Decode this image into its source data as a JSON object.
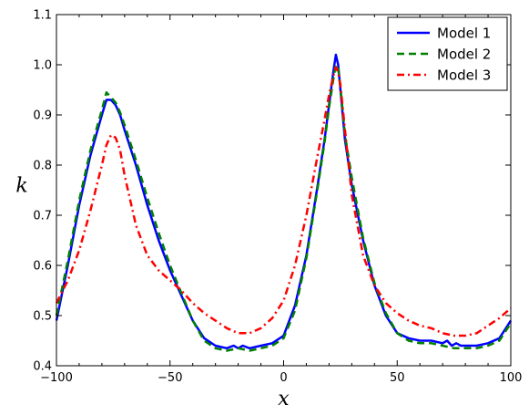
{
  "chart_data": {
    "type": "line",
    "title": "",
    "xlabel": "x",
    "ylabel": "k",
    "xlim": [
      -100,
      100
    ],
    "ylim": [
      0.4,
      1.1
    ],
    "xticks": [
      "−100",
      "−50",
      "0",
      "50",
      "100"
    ],
    "yticks": [
      "0.4",
      "0.5",
      "0.6",
      "0.7",
      "0.8",
      "0.9",
      "1.0",
      "1.1"
    ],
    "grid": false,
    "legend_position": "top-right",
    "series": [
      {
        "name": "Model 1",
        "color": "#0000ff",
        "style": "solid",
        "x": [
          -100,
          -95,
          -90,
          -85,
          -80,
          -78,
          -76,
          -74,
          -72,
          -70,
          -65,
          -60,
          -55,
          -50,
          -45,
          -40,
          -35,
          -30,
          -25,
          -22,
          -20,
          -18,
          -15,
          -10,
          -5,
          0,
          5,
          10,
          15,
          18,
          20,
          22,
          23,
          24,
          25,
          27,
          30,
          35,
          40,
          45,
          50,
          55,
          60,
          65,
          70,
          72,
          74,
          76,
          78,
          80,
          85,
          90,
          95,
          100
        ],
        "y": [
          0.49,
          0.6,
          0.72,
          0.82,
          0.9,
          0.93,
          0.93,
          0.92,
          0.9,
          0.87,
          0.8,
          0.72,
          0.65,
          0.59,
          0.54,
          0.49,
          0.455,
          0.44,
          0.435,
          0.44,
          0.435,
          0.44,
          0.435,
          0.44,
          0.445,
          0.46,
          0.52,
          0.62,
          0.76,
          0.85,
          0.92,
          0.99,
          1.02,
          1.0,
          0.95,
          0.85,
          0.76,
          0.65,
          0.56,
          0.5,
          0.465,
          0.455,
          0.45,
          0.45,
          0.445,
          0.45,
          0.44,
          0.445,
          0.44,
          0.44,
          0.44,
          0.445,
          0.455,
          0.49
        ]
      },
      {
        "name": "Model 2",
        "color": "#008000",
        "style": "dashed",
        "x": [
          -100,
          -95,
          -90,
          -85,
          -80,
          -78,
          -76,
          -74,
          -72,
          -70,
          -65,
          -60,
          -55,
          -50,
          -45,
          -40,
          -35,
          -30,
          -25,
          -20,
          -15,
          -10,
          -5,
          0,
          5,
          10,
          15,
          18,
          20,
          22,
          23,
          24,
          25,
          27,
          30,
          35,
          40,
          45,
          50,
          55,
          60,
          65,
          70,
          75,
          80,
          85,
          90,
          95,
          100
        ],
        "y": [
          0.5,
          0.61,
          0.73,
          0.83,
          0.91,
          0.945,
          0.935,
          0.925,
          0.905,
          0.88,
          0.81,
          0.735,
          0.665,
          0.6,
          0.545,
          0.49,
          0.45,
          0.435,
          0.43,
          0.435,
          0.43,
          0.435,
          0.44,
          0.455,
          0.51,
          0.615,
          0.755,
          0.845,
          0.915,
          0.975,
          1.0,
          0.995,
          0.955,
          0.86,
          0.775,
          0.655,
          0.565,
          0.505,
          0.465,
          0.45,
          0.445,
          0.445,
          0.44,
          0.435,
          0.435,
          0.435,
          0.44,
          0.45,
          0.485
        ]
      },
      {
        "name": "Model 3",
        "color": "#ff0000",
        "style": "dashdot",
        "x": [
          -100,
          -95,
          -90,
          -85,
          -80,
          -78,
          -76,
          -74,
          -72,
          -70,
          -65,
          -60,
          -55,
          -50,
          -45,
          -40,
          -35,
          -30,
          -25,
          -20,
          -15,
          -10,
          -5,
          0,
          5,
          10,
          15,
          18,
          20,
          22,
          23,
          24,
          25,
          27,
          30,
          35,
          40,
          45,
          50,
          55,
          60,
          65,
          70,
          75,
          80,
          85,
          90,
          95,
          100
        ],
        "y": [
          0.525,
          0.57,
          0.63,
          0.71,
          0.8,
          0.84,
          0.86,
          0.855,
          0.83,
          0.78,
          0.68,
          0.62,
          0.59,
          0.57,
          0.55,
          0.525,
          0.505,
          0.49,
          0.475,
          0.465,
          0.465,
          0.475,
          0.495,
          0.53,
          0.6,
          0.7,
          0.82,
          0.89,
          0.94,
          0.98,
          0.995,
          0.985,
          0.96,
          0.87,
          0.74,
          0.62,
          0.56,
          0.525,
          0.505,
          0.49,
          0.48,
          0.475,
          0.465,
          0.46,
          0.46,
          0.465,
          0.48,
          0.495,
          0.515
        ]
      }
    ]
  }
}
